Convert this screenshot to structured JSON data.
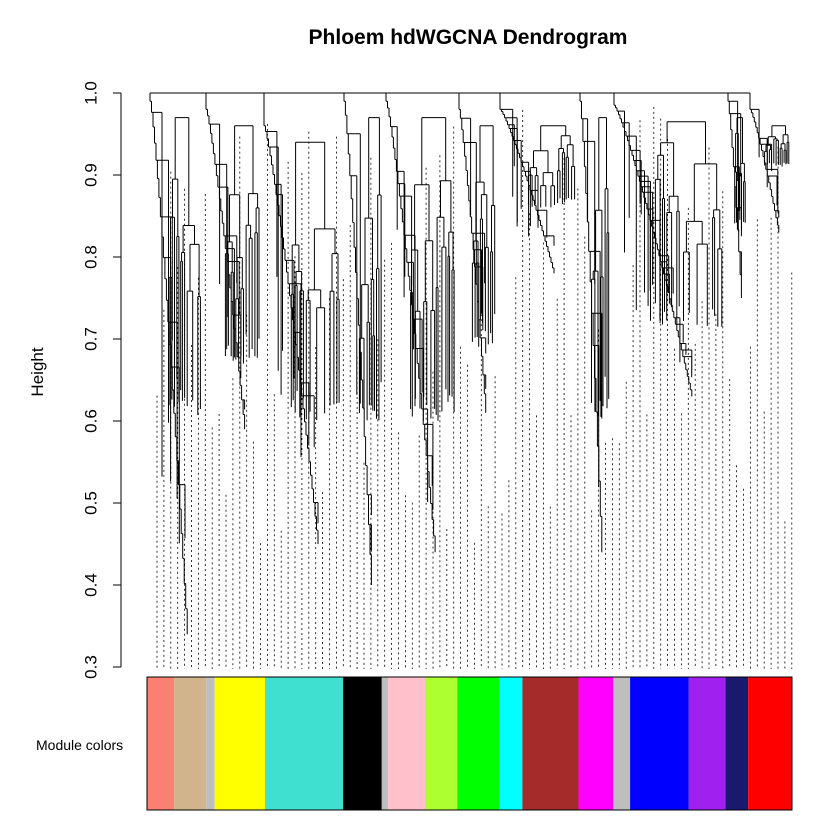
{
  "chart_data": {
    "type": "dendrogram",
    "title": "Phloem hdWGCNA Dendrogram",
    "ylabel": "Height",
    "xlabel": "",
    "ylim": [
      0.3,
      1.0
    ],
    "yticks": [
      "0.3",
      "0.4",
      "0.5",
      "0.6",
      "0.7",
      "0.8",
      "0.9",
      "1.0"
    ],
    "color_row_label": "Module colors",
    "modules": [
      {
        "color": "#fa8072",
        "fraction": 0.042
      },
      {
        "color": "#d2b48c",
        "fraction": 0.05
      },
      {
        "color": "#bebebe",
        "fraction": 0.013
      },
      {
        "color": "#ffff00",
        "fraction": 0.078
      },
      {
        "color": "#40e0d0",
        "fraction": 0.121
      },
      {
        "color": "#000000",
        "fraction": 0.06
      },
      {
        "color": "#bebebe",
        "fraction": 0.01
      },
      {
        "color": "#ffc0cb",
        "fraction": 0.057
      },
      {
        "color": "#adff2f",
        "fraction": 0.05
      },
      {
        "color": "#00ff00",
        "fraction": 0.065
      },
      {
        "color": "#00ffff",
        "fraction": 0.036
      },
      {
        "color": "#a52a2a",
        "fraction": 0.087
      },
      {
        "color": "#ff00ff",
        "fraction": 0.054
      },
      {
        "color": "#bebebe",
        "fraction": 0.026
      },
      {
        "color": "#0000ff",
        "fraction": 0.091
      },
      {
        "color": "#a020f0",
        "fraction": 0.057
      },
      {
        "color": "#191970",
        "fraction": 0.035
      },
      {
        "color": "#ff0000",
        "fraction": 0.068
      }
    ],
    "branch_minimum_heights": [
      0.34,
      0.62,
      0.59,
      0.45,
      0.4,
      0.44,
      0.61,
      0.82,
      0.44,
      0.71,
      0.63,
      0.75,
      0.83
    ],
    "root_height": 1.0
  }
}
